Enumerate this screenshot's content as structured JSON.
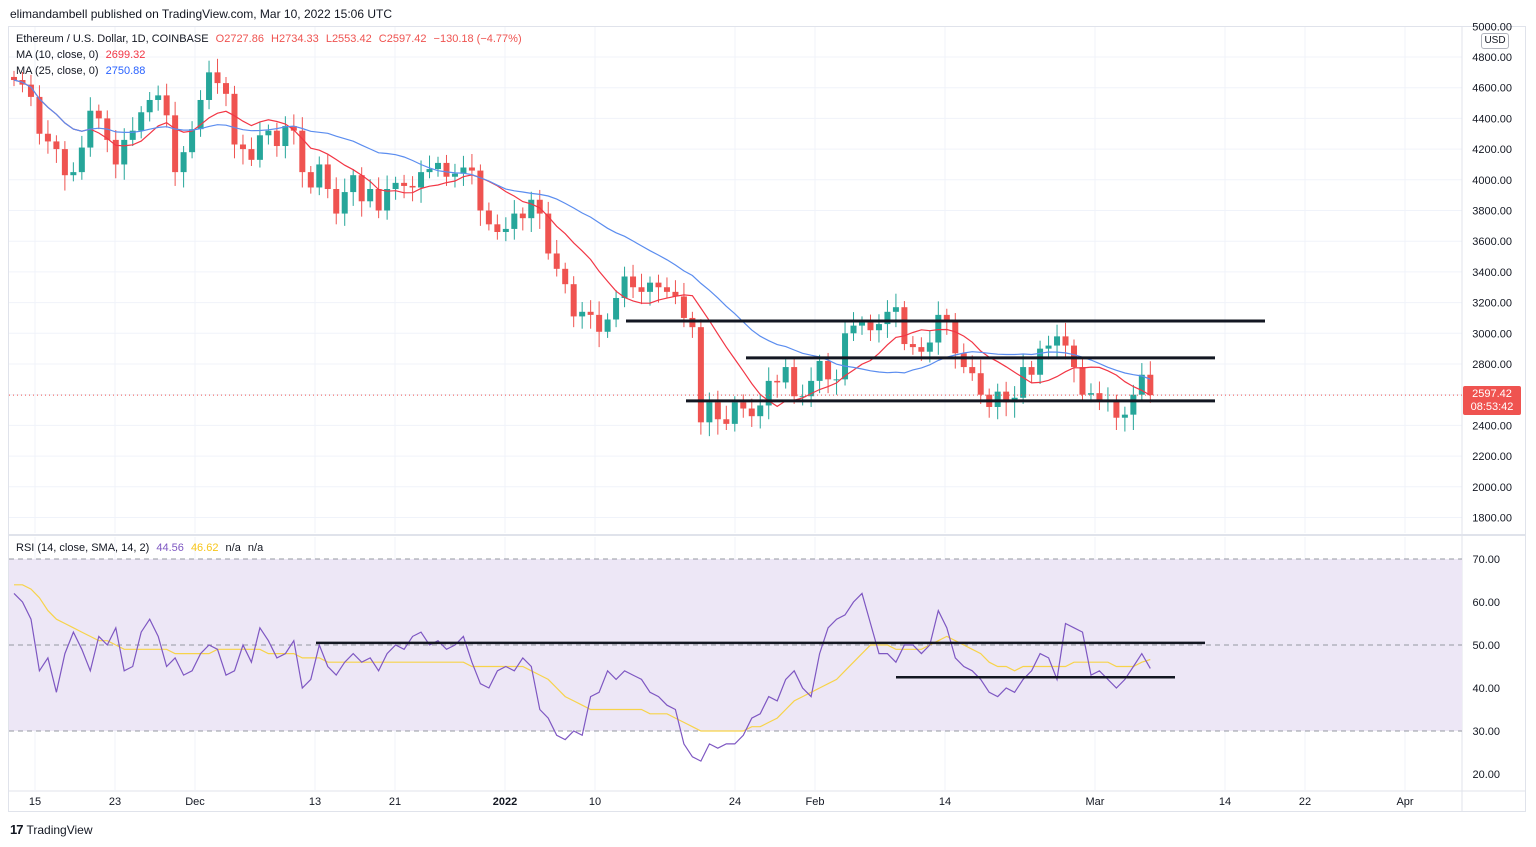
{
  "header": {
    "published_line": "elimandambell published on TradingView.com, Mar 10, 2022 15:06 UTC"
  },
  "legend": {
    "symbol": "Ethereum / U.S. Dollar, 1D, COINBASE",
    "o_label": "O",
    "o_value": "2727.86",
    "h_label": "H",
    "h_value": "2734.33",
    "l_label": "L",
    "l_value": "2553.42",
    "c_label": "C",
    "c_value": "2597.42",
    "change": "−130.18 (−4.77%)",
    "ma10_label": "MA (10, close, 0)",
    "ma10_value": "2699.32",
    "ma25_label": "MA (25, close, 0)",
    "ma25_value": "2750.88",
    "rsi_label": "RSI (14, close, SMA, 14, 2)",
    "rsi_value": "44.56",
    "rsi_sma_value": "46.62",
    "na1": "n/a",
    "na2": "n/a"
  },
  "price_axis": {
    "currency": "USD",
    "last_price": "2597.42",
    "countdown": "08:53:42"
  },
  "footer": {
    "logo_text": "TradingView",
    "logo_mark": "17"
  },
  "colors": {
    "up": "#26a69a",
    "down": "#ef5350",
    "ma10": "#f23645",
    "ma25": "#5b8def",
    "rsi": "#7e57c2",
    "rsi_sma": "#f7d34a",
    "rsi_band": "#ede7f6",
    "trendline": "#131722"
  },
  "chart_data": [
    {
      "type": "candlestick",
      "title": "Ethereum / U.S. Dollar, 1D, COINBASE",
      "ylim": [
        1800,
        5000
      ],
      "yticks": [
        "1800.00",
        "2000.00",
        "2200.00",
        "2400.00",
        "2600.00",
        "2800.00",
        "3000.00",
        "3200.00",
        "3400.00",
        "3600.00",
        "3800.00",
        "4000.00",
        "4200.00",
        "4400.00",
        "4600.00",
        "4800.00",
        "5000.00"
      ],
      "x_tick_labels": [
        "15",
        "23",
        "Dec",
        "13",
        "21",
        "2022",
        "10",
        "24",
        "Feb",
        "14",
        "Mar",
        "14",
        "22",
        "Apr"
      ],
      "series_closes": [
        4650,
        4620,
        4540,
        4300,
        4250,
        4200,
        4030,
        4050,
        4210,
        4450,
        4400,
        4260,
        4100,
        4260,
        4320,
        4440,
        4520,
        4550,
        4420,
        4050,
        4180,
        4330,
        4520,
        4700,
        4630,
        4560,
        4230,
        4200,
        4130,
        4290,
        4320,
        4220,
        4350,
        4320,
        4050,
        3950,
        4100,
        3940,
        3780,
        3920,
        4030,
        3860,
        3940,
        3800,
        3940,
        3980,
        3960,
        3950,
        4050,
        4070,
        4110,
        4020,
        4040,
        4080,
        4060,
        3800,
        3710,
        3660,
        3680,
        3780,
        3750,
        3870,
        3780,
        3520,
        3420,
        3320,
        3110,
        3140,
        3120,
        3010,
        3090,
        3230,
        3370,
        3300,
        3270,
        3330,
        3300,
        3270,
        3240,
        3100,
        3040,
        2420,
        2550,
        2440,
        2410,
        2550,
        2510,
        2460,
        2530,
        2690,
        2680,
        2780,
        2590,
        2590,
        2690,
        2820,
        2700,
        2700,
        3000,
        3050,
        3070,
        3020,
        3060,
        3140,
        3170,
        2930,
        2910,
        2880,
        2940,
        3120,
        3080,
        2870,
        2780,
        2740,
        2600,
        2520,
        2620,
        2550,
        2580,
        2780,
        2730,
        2900,
        2920,
        2980,
        2920,
        2780,
        2600,
        2610,
        2560,
        2560,
        2450,
        2470,
        2600,
        2730,
        2597
      ],
      "ma10_last": 2699.32,
      "ma25_last": 2750.88,
      "last_price": 2597.42,
      "trendlines": [
        {
          "y": 3080
        },
        {
          "y": 2840
        },
        {
          "y": 2560
        }
      ]
    },
    {
      "type": "line",
      "title": "RSI (14, close, SMA, 14, 2)",
      "ylim": [
        20,
        70
      ],
      "yticks": [
        "20.00",
        "30.00",
        "40.00",
        "50.00",
        "60.00",
        "70.00"
      ],
      "bands": [
        30,
        50,
        70
      ],
      "series": [
        {
          "name": "RSI",
          "values": [
            62,
            60,
            56,
            44,
            47,
            39,
            48,
            53,
            49,
            44,
            52,
            50,
            54,
            44,
            45,
            53,
            56,
            52,
            45,
            47,
            43,
            44,
            48,
            50,
            49,
            43,
            44,
            50,
            46,
            54,
            51,
            47,
            48,
            51,
            40,
            42,
            50,
            45,
            43,
            46,
            48,
            46,
            47,
            44,
            48,
            50,
            49,
            52,
            53,
            50,
            51,
            49,
            50,
            52,
            46,
            41,
            40,
            44,
            45,
            44,
            47,
            45,
            35,
            33,
            29,
            28,
            30,
            29,
            38,
            39,
            44,
            42,
            44,
            43,
            42,
            39,
            38,
            36,
            35,
            27,
            24,
            23,
            27,
            26,
            27,
            27,
            29,
            33,
            34,
            38,
            37,
            42,
            44,
            40,
            38,
            48,
            54,
            56,
            57,
            60,
            62,
            55,
            48,
            48,
            46,
            50,
            50,
            48,
            50,
            58,
            54,
            47,
            45,
            44,
            42,
            39,
            38,
            40,
            39,
            42,
            44,
            48,
            47,
            42,
            55,
            54,
            53,
            43,
            44,
            42,
            40,
            42,
            45,
            48,
            44.56
          ]
        },
        {
          "name": "RSI SMA",
          "values": [
            64,
            64,
            63,
            61,
            58,
            56,
            55,
            54,
            53,
            52,
            51,
            51,
            50,
            49,
            49,
            49,
            49,
            49,
            49,
            48,
            48,
            48,
            48,
            48,
            49,
            49,
            49,
            49,
            49,
            49,
            48,
            48,
            48,
            48,
            47,
            47,
            47,
            46,
            46,
            46,
            46,
            46,
            46,
            46,
            46,
            46,
            46,
            46,
            46,
            46,
            46,
            46,
            46,
            46,
            45,
            45,
            45,
            45,
            45,
            45,
            45,
            44,
            43,
            42,
            40,
            38,
            37,
            36,
            35,
            35,
            35,
            35,
            35,
            35,
            35,
            34,
            34,
            34,
            33,
            32,
            31,
            30,
            30,
            30,
            30,
            30,
            30,
            31,
            31,
            32,
            33,
            35,
            37,
            38,
            39,
            40,
            41,
            42,
            44,
            46,
            48,
            50,
            50,
            50,
            49,
            49,
            49,
            49,
            50,
            51,
            52,
            51,
            50,
            49,
            48,
            46,
            45,
            45,
            44,
            45,
            45,
            45,
            45,
            45,
            45,
            46,
            46,
            46,
            46,
            46,
            45,
            45,
            45,
            46,
            46.62
          ]
        }
      ],
      "trendlines": [
        {
          "y": 50.5
        },
        {
          "y": 42.5
        }
      ]
    }
  ]
}
